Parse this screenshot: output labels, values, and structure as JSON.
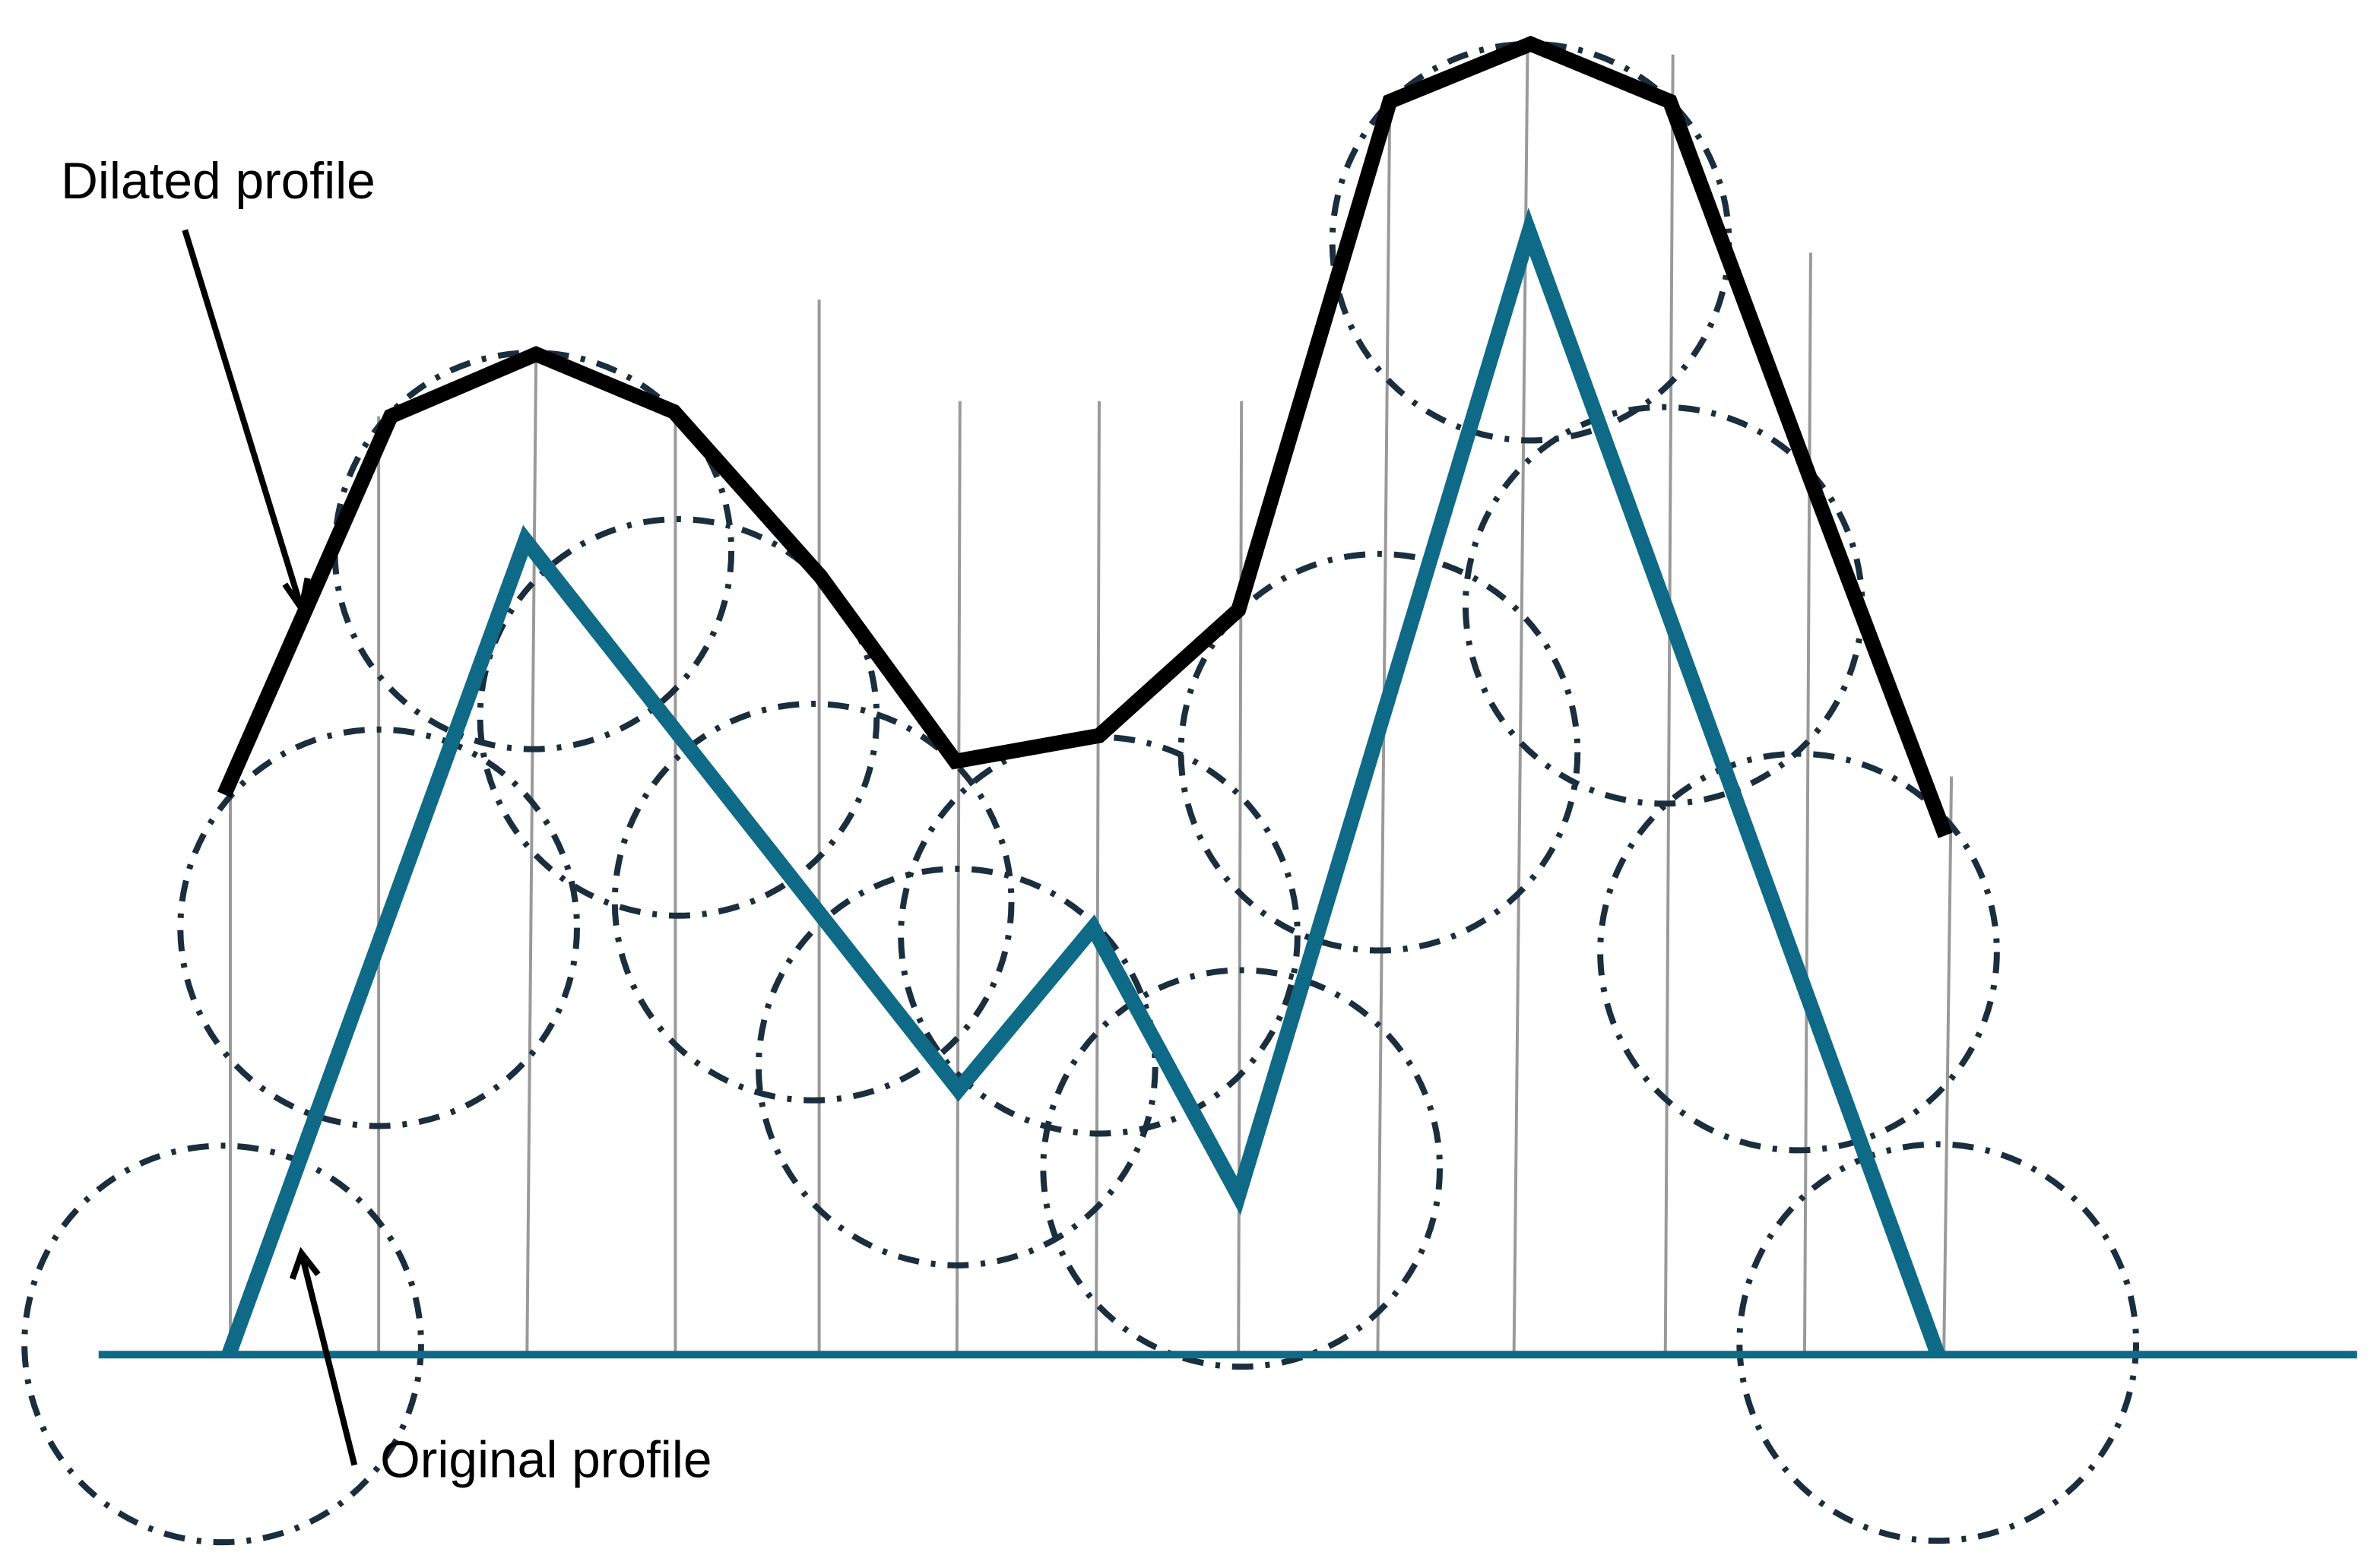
{
  "labels": {
    "dilated_profile": "Dilated profile",
    "original_profile": "Original profile"
  },
  "colors": {
    "original": "#0e6a86",
    "dilated": "#000000",
    "circles": "#1a2e3d",
    "grid": "#9a9a9a"
  }
}
